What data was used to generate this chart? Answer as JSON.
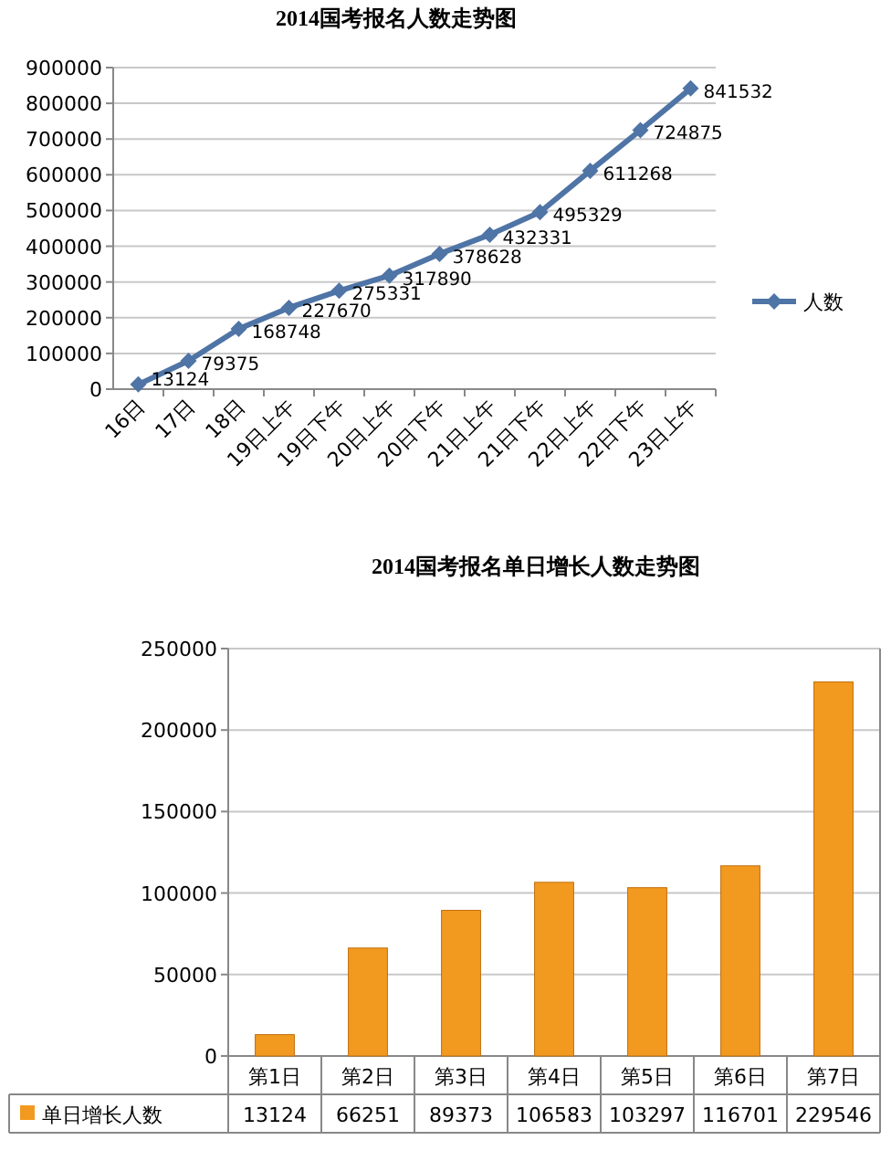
{
  "chart_data": [
    {
      "type": "line",
      "title": "2014国考报名人数走势图",
      "categories": [
        "16日",
        "17日",
        "18日",
        "19日上午",
        "19日下午",
        "20日上午",
        "20日下午",
        "21日上午",
        "21日下午",
        "22日上午",
        "22日下午",
        "23日上午"
      ],
      "series": [
        {
          "name": "人数",
          "color": "#4f74a6",
          "values": [
            13124,
            79375,
            168748,
            227670,
            275331,
            317890,
            378628,
            432331,
            495329,
            611268,
            724875,
            841532
          ]
        }
      ],
      "ylim": [
        0,
        900000
      ],
      "yticks": [
        0,
        100000,
        200000,
        300000,
        400000,
        500000,
        600000,
        700000,
        800000,
        900000
      ],
      "grid": "y",
      "legend": "right",
      "marker": "diamond",
      "data_labels": true
    },
    {
      "type": "bar",
      "title": "2014国考报名单日增长人数走势图",
      "categories": [
        "第1日",
        "第2日",
        "第3日",
        "第4日",
        "第5日",
        "第6日",
        "第7日"
      ],
      "series": [
        {
          "name": "单日增长人数",
          "color": "#f29a1f",
          "values": [
            13124,
            66251,
            89373,
            106583,
            103297,
            116701,
            229546
          ]
        }
      ],
      "ylim": [
        0,
        250000
      ],
      "yticks": [
        0,
        50000,
        100000,
        150000,
        200000,
        250000
      ],
      "grid": "y",
      "legend": "bottom",
      "data_labels": true
    }
  ]
}
